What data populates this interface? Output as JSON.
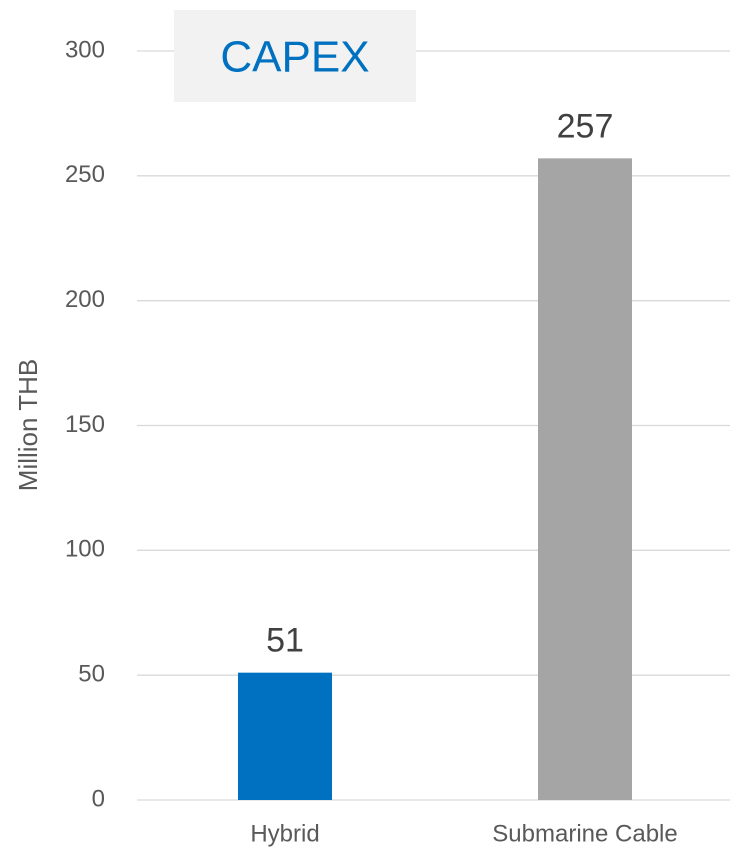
{
  "chart_data": {
    "type": "bar",
    "title": "CAPEX",
    "y_label": "Million THB",
    "categories": [
      "Hybrid",
      "Submarine Cable"
    ],
    "values": [
      51,
      257
    ],
    "colors": [
      "#0070c0",
      "#a5a5a5"
    ],
    "ylim": [
      0,
      300
    ],
    "yticks": [
      0,
      50,
      100,
      150,
      200,
      250,
      300
    ],
    "grid": true
  }
}
